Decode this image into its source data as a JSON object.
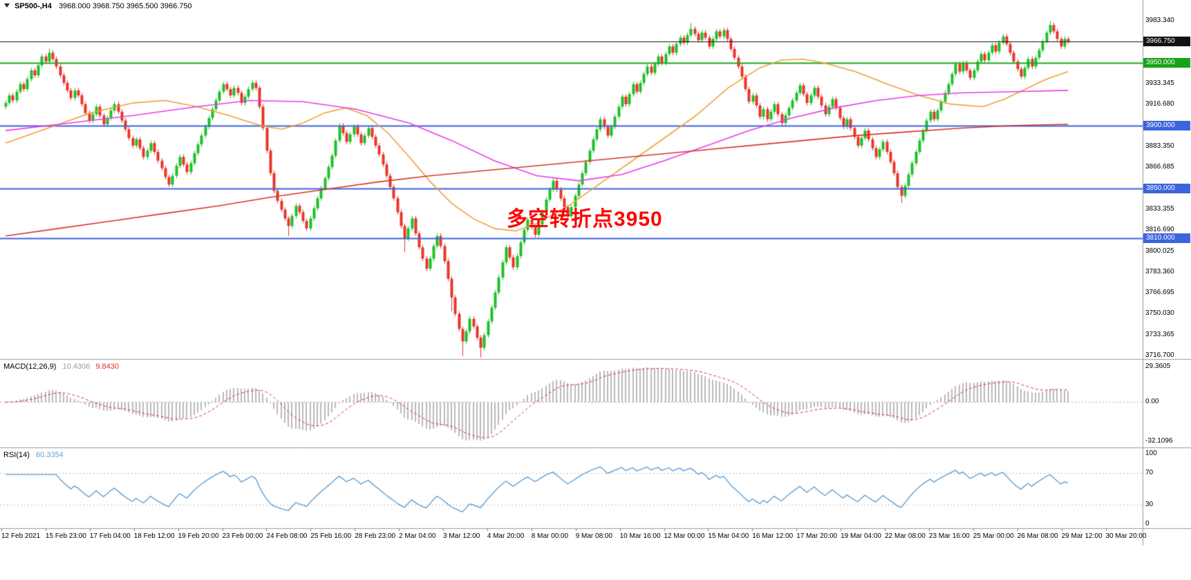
{
  "header": {
    "title": "SP500-,H4",
    "ohlc": "3968.000 3968.750 3965.500 3966.750"
  },
  "annotation": {
    "text": "多空转折点3950",
    "color": "#ff0000"
  },
  "price_axis": {
    "ticks": [
      {
        "v": 3983.34,
        "label": "3983.340"
      },
      {
        "v": 3933.345,
        "label": "3933.345"
      },
      {
        "v": 3916.68,
        "label": "3916.680"
      },
      {
        "v": 3883.35,
        "label": "3883.350"
      },
      {
        "v": 3866.685,
        "label": "3866.685"
      },
      {
        "v": 3833.355,
        "label": "3833.355"
      },
      {
        "v": 3816.69,
        "label": "3816.690"
      },
      {
        "v": 3800.025,
        "label": "3800.025"
      },
      {
        "v": 3783.36,
        "label": "3783.360"
      },
      {
        "v": 3766.695,
        "label": "3766.695"
      },
      {
        "v": 3750.03,
        "label": "3750.030"
      },
      {
        "v": 3733.365,
        "label": "3733.365"
      },
      {
        "v": 3716.7,
        "label": "3716.700"
      }
    ],
    "badges": [
      {
        "v": 3966.75,
        "label": "3966.750",
        "bg": "#111111"
      },
      {
        "v": 3950.0,
        "label": "3950.000",
        "bg": "#17a317"
      },
      {
        "v": 3900.0,
        "label": "3900.000",
        "bg": "#3c64dc"
      },
      {
        "v": 3850.0,
        "label": "3850.000",
        "bg": "#3c64dc"
      },
      {
        "v": 3810.0,
        "label": "3810.000",
        "bg": "#3c64dc"
      }
    ]
  },
  "macd_panel": {
    "label": "MACD(12,26,9)",
    "value_main": "10.4306",
    "value_signal": "9.8430",
    "axis": [
      "29.3605",
      "0.00",
      "-32.1096"
    ]
  },
  "rsi_panel": {
    "label": "RSI(14)",
    "value": "60.3354",
    "axis": [
      "100",
      "70",
      "30",
      "0"
    ]
  },
  "time_axis": {
    "labels": [
      "12 Feb 2021",
      "15 Feb 23:00",
      "17 Feb 04:00",
      "18 Feb 12:00",
      "19 Feb 20:00",
      "23 Feb 00:00",
      "24 Feb 08:00",
      "25 Feb 16:00",
      "28 Feb 23:00",
      "2 Mar 04:00",
      "3 Mar 12:00",
      "4 Mar 20:00",
      "8 Mar 00:00",
      "9 Mar 08:00",
      "10 Mar 16:00",
      "12 Mar 00:00",
      "15 Mar 04:00",
      "16 Mar 12:00",
      "17 Mar 20:00",
      "19 Mar 04:00",
      "22 Mar 08:00",
      "23 Mar 16:00",
      "25 Mar 00:00",
      "26 Mar 08:00",
      "29 Mar 12:00",
      "30 Mar 20:00"
    ]
  },
  "chart_data": {
    "type": "candlestick",
    "symbol": "SP500-",
    "timeframe": "H4",
    "title": "SP500-,H4 3968.000 3968.750 3965.500 3966.750",
    "ylim": [
      3715.185,
      3983.34
    ],
    "closes": [
      3918,
      3924,
      3920,
      3927,
      3933,
      3929,
      3937,
      3944,
      3940,
      3948,
      3955,
      3951,
      3958,
      3953,
      3947,
      3940,
      3934,
      3928,
      3922,
      3928,
      3924,
      3917,
      3910,
      3904,
      3909,
      3915,
      3908,
      3901,
      3906,
      3912,
      3917,
      3911,
      3904,
      3897,
      3890,
      3884,
      3889,
      3882,
      3875,
      3880,
      3886,
      3879,
      3872,
      3866,
      3859,
      3853,
      3860,
      3868,
      3875,
      3869,
      3863,
      3870,
      3878,
      3885,
      3892,
      3899,
      3906,
      3913,
      3920,
      3927,
      3933,
      3929,
      3924,
      3930,
      3926,
      3918,
      3923,
      3929,
      3934,
      3930,
      3915,
      3898,
      3880,
      3862,
      3848,
      3840,
      3833,
      3826,
      3820,
      3828,
      3836,
      3831,
      3824,
      3818,
      3826,
      3834,
      3842,
      3850,
      3858,
      3867,
      3876,
      3888,
      3900,
      3894,
      3887,
      3893,
      3899,
      3893,
      3886,
      3892,
      3898,
      3891,
      3884,
      3877,
      3869,
      3860,
      3851,
      3842,
      3831,
      3820,
      3810,
      3818,
      3826,
      3814,
      3803,
      3794,
      3786,
      3794,
      3804,
      3812,
      3804,
      3792,
      3778,
      3763,
      3750,
      3738,
      3728,
      3736,
      3746,
      3740,
      3731,
      3723,
      3733,
      3744,
      3755,
      3767,
      3779,
      3791,
      3803,
      3795,
      3787,
      3796,
      3807,
      3817,
      3825,
      3819,
      3813,
      3821,
      3831,
      3841,
      3849,
      3856,
      3849,
      3842,
      3835,
      3828,
      3835,
      3844,
      3853,
      3862,
      3871,
      3880,
      3889,
      3897,
      3905,
      3899,
      3892,
      3899,
      3907,
      3915,
      3923,
      3917,
      3925,
      3933,
      3927,
      3934,
      3941,
      3947,
      3942,
      3949,
      3955,
      3950,
      3957,
      3963,
      3958,
      3965,
      3970,
      3966,
      3972,
      3977,
      3973,
      3968,
      3974,
      3970,
      3963,
      3969,
      3975,
      3971,
      3976,
      3969,
      3961,
      3954,
      3947,
      3939,
      3929,
      3919,
      3924,
      3916,
      3907,
      3913,
      3905,
      3911,
      3917,
      3909,
      3902,
      3908,
      3914,
      3920,
      3926,
      3932,
      3925,
      3918,
      3924,
      3930,
      3923,
      3916,
      3909,
      3915,
      3921,
      3914,
      3906,
      3899,
      3905,
      3898,
      3891,
      3884,
      3890,
      3896,
      3889,
      3882,
      3875,
      3881,
      3887,
      3879,
      3871,
      3862,
      3851,
      3844,
      3852,
      3861,
      3870,
      3879,
      3888,
      3896,
      3904,
      3911,
      3905,
      3912,
      3919,
      3926,
      3933,
      3941,
      3949,
      3943,
      3950,
      3944,
      3938,
      3944,
      3951,
      3957,
      3952,
      3958,
      3964,
      3959,
      3966,
      3971,
      3965,
      3958,
      3951,
      3945,
      3939,
      3946,
      3953,
      3947,
      3954,
      3960,
      3967,
      3974,
      3980,
      3975,
      3969,
      3963,
      3969,
      3966.8
    ],
    "wick_overrides": {
      "12": {
        "h": 3961.5
      },
      "78": {
        "l": 3812
      },
      "110": {
        "l": 3799
      },
      "123": {
        "l": 3752
      },
      "126": {
        "l": 3716.5
      },
      "131": {
        "l": 3715.2
      },
      "189": {
        "h": 3981.5
      },
      "247": {
        "l": 3838.3
      },
      "288": {
        "h": 3983.3
      }
    },
    "levels": [
      {
        "value": 3966.75,
        "color": "#111111",
        "width": 1
      },
      {
        "value": 3950.0,
        "color": "#1fa51f",
        "width": 2
      },
      {
        "value": 3900.0,
        "color": "#3c64dc",
        "width": 2
      },
      {
        "value": 3850.0,
        "color": "#3c64dc",
        "width": 2
      },
      {
        "value": 3810.0,
        "color": "#3c64dc",
        "width": 2
      }
    ],
    "moving_averages": [
      {
        "name": "fast-ma-orange",
        "color": "#f0a03a",
        "points": [
          [
            0,
            3886
          ],
          [
            0.04,
            3898
          ],
          [
            0.08,
            3910
          ],
          [
            0.12,
            3918
          ],
          [
            0.15,
            3920
          ],
          [
            0.18,
            3915
          ],
          [
            0.21,
            3908
          ],
          [
            0.24,
            3900
          ],
          [
            0.26,
            3897
          ],
          [
            0.28,
            3902
          ],
          [
            0.3,
            3910
          ],
          [
            0.32,
            3914
          ],
          [
            0.34,
            3908
          ],
          [
            0.36,
            3894
          ],
          [
            0.38,
            3875
          ],
          [
            0.4,
            3855
          ],
          [
            0.42,
            3838
          ],
          [
            0.44,
            3826
          ],
          [
            0.46,
            3818
          ],
          [
            0.48,
            3816
          ],
          [
            0.5,
            3822
          ],
          [
            0.53,
            3836
          ],
          [
            0.56,
            3854
          ],
          [
            0.59,
            3872
          ],
          [
            0.62,
            3890
          ],
          [
            0.65,
            3908
          ],
          [
            0.68,
            3930
          ],
          [
            0.71,
            3946
          ],
          [
            0.73,
            3952
          ],
          [
            0.75,
            3953
          ],
          [
            0.77,
            3950
          ],
          [
            0.8,
            3943
          ],
          [
            0.83,
            3933
          ],
          [
            0.86,
            3924
          ],
          [
            0.89,
            3917
          ],
          [
            0.92,
            3915
          ],
          [
            0.94,
            3921
          ],
          [
            0.96,
            3929
          ],
          [
            0.98,
            3937
          ],
          [
            1,
            3943
          ]
        ]
      },
      {
        "name": "mid-ma-magenta",
        "color": "#e83be8",
        "points": [
          [
            0,
            3896
          ],
          [
            0.06,
            3902
          ],
          [
            0.12,
            3908
          ],
          [
            0.18,
            3915
          ],
          [
            0.23,
            3920
          ],
          [
            0.28,
            3919
          ],
          [
            0.33,
            3913
          ],
          [
            0.38,
            3902
          ],
          [
            0.42,
            3888
          ],
          [
            0.46,
            3872
          ],
          [
            0.5,
            3860
          ],
          [
            0.54,
            3856
          ],
          [
            0.58,
            3861
          ],
          [
            0.62,
            3872
          ],
          [
            0.66,
            3884
          ],
          [
            0.7,
            3896
          ],
          [
            0.74,
            3906
          ],
          [
            0.78,
            3914
          ],
          [
            0.82,
            3920
          ],
          [
            0.86,
            3924
          ],
          [
            0.9,
            3926
          ],
          [
            0.95,
            3927
          ],
          [
            1,
            3928
          ]
        ]
      },
      {
        "name": "slow-ma-red",
        "color": "#d9342b",
        "points": [
          [
            0,
            3812
          ],
          [
            0.05,
            3818
          ],
          [
            0.1,
            3824
          ],
          [
            0.15,
            3830
          ],
          [
            0.2,
            3836
          ],
          [
            0.25,
            3843
          ],
          [
            0.3,
            3849
          ],
          [
            0.35,
            3855
          ],
          [
            0.4,
            3860
          ],
          [
            0.45,
            3864
          ],
          [
            0.5,
            3868
          ],
          [
            0.55,
            3872
          ],
          [
            0.6,
            3876
          ],
          [
            0.65,
            3880
          ],
          [
            0.7,
            3884
          ],
          [
            0.75,
            3888
          ],
          [
            0.8,
            3892
          ],
          [
            0.85,
            3895
          ],
          [
            0.9,
            3898
          ],
          [
            0.95,
            3900
          ],
          [
            1,
            3901
          ]
        ]
      }
    ],
    "colors": {
      "up": "#1fc027",
      "down": "#e8352c",
      "macd_hist": "#b9b9b9",
      "macd_signal": "#e03131",
      "rsi_line": "#5e9fd4",
      "level_blue": "#3c64dc",
      "level_green": "#1fa51f"
    },
    "indicators": {
      "macd": {
        "params": "12,26,9",
        "main": 10.4306,
        "signal": 9.843,
        "range": [
          -32.1096,
          29.3605
        ]
      },
      "rsi": {
        "period": 14,
        "value": 60.3354,
        "levels": [
          70,
          30
        ],
        "range": [
          0,
          100
        ]
      }
    }
  }
}
